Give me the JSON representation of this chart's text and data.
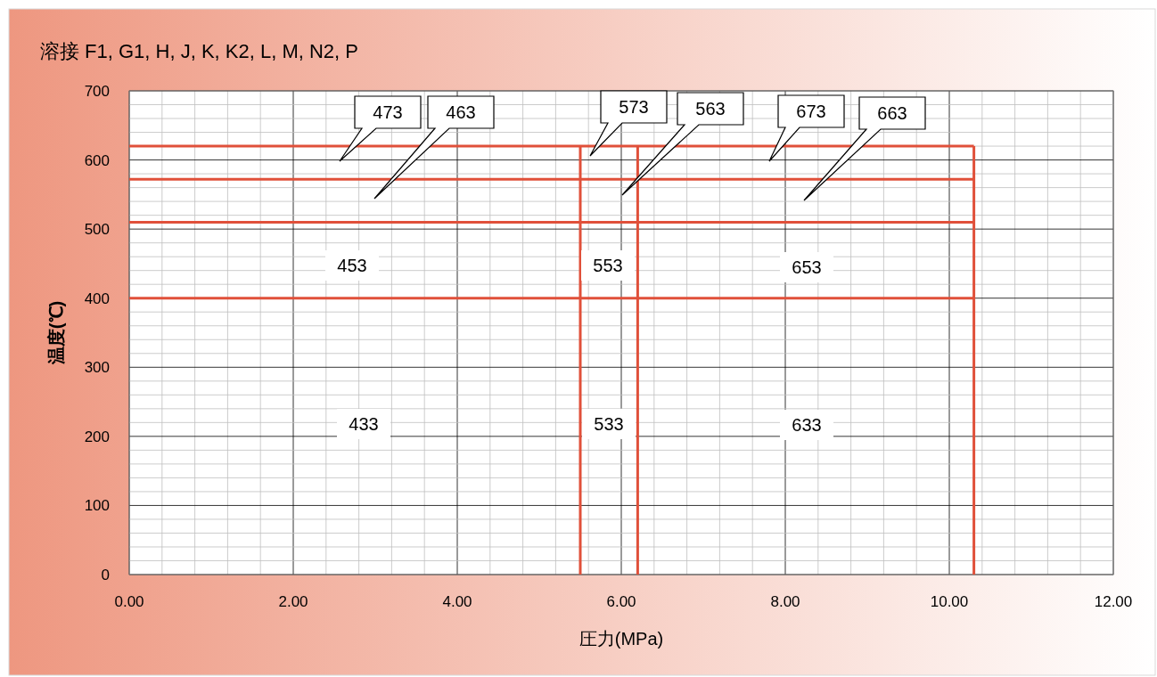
{
  "chart_data": {
    "type": "line",
    "title": "溶接 F1, G1, H, J, K, K2, L, M, N2, P",
    "xlabel": "圧力(MPa)",
    "ylabel": "温度(℃)",
    "xlim": [
      0,
      12
    ],
    "ylim": [
      0,
      700
    ],
    "xticks": [
      {
        "value": 0,
        "label": "0.00"
      },
      {
        "value": 2,
        "label": "2.00"
      },
      {
        "value": 4,
        "label": "4.00"
      },
      {
        "value": 6,
        "label": "6.00"
      },
      {
        "value": 8,
        "label": "8.00"
      },
      {
        "value": 10,
        "label": "10.00"
      },
      {
        "value": 12,
        "label": "12.00"
      }
    ],
    "yticks": [
      0,
      100,
      200,
      300,
      400,
      500,
      600,
      700
    ],
    "grid": true,
    "color": "#e0503a",
    "series": [
      {
        "x": [
          0,
          10.3
        ],
        "values": [
          620,
          620
        ]
      },
      {
        "x": [
          0,
          10.3
        ],
        "values": [
          572,
          572
        ]
      },
      {
        "x": [
          0,
          10.3
        ],
        "values": [
          510,
          510
        ]
      },
      {
        "x": [
          0,
          10.3
        ],
        "values": [
          400,
          400
        ]
      },
      {
        "x": [
          5.5,
          5.5
        ],
        "values": [
          0,
          620
        ]
      },
      {
        "x": [
          6.2,
          6.2
        ],
        "values": [
          0,
          620
        ]
      },
      {
        "x": [
          10.3,
          10.3
        ],
        "values": [
          0,
          620
        ]
      }
    ],
    "annotations": [
      "453",
      "433",
      "553",
      "533",
      "653",
      "633",
      "473",
      "463",
      "573",
      "563",
      "673",
      "663"
    ]
  }
}
